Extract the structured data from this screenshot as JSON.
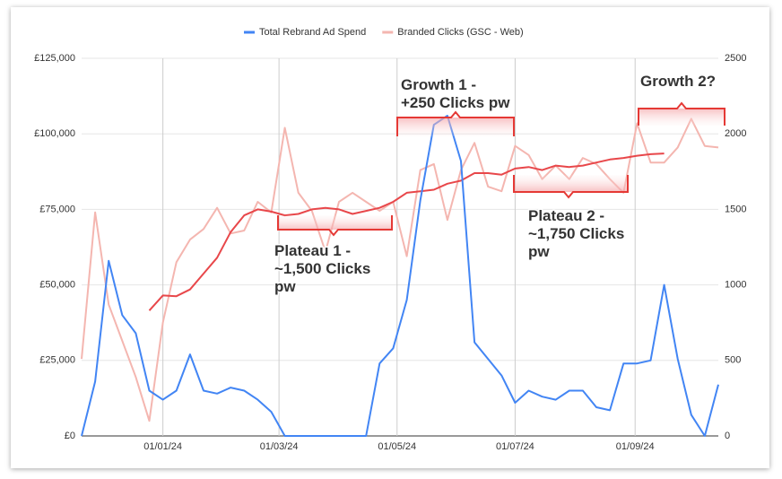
{
  "chart_data": {
    "type": "line",
    "x": [
      "20/11/23",
      "27/11/23",
      "04/12/23",
      "11/12/23",
      "18/12/23",
      "25/12/23",
      "01/01/24",
      "08/01/24",
      "15/01/24",
      "22/01/24",
      "29/01/24",
      "05/02/24",
      "12/02/24",
      "19/02/24",
      "26/02/24",
      "04/03/24",
      "11/03/24",
      "18/03/24",
      "25/03/24",
      "01/04/24",
      "08/04/24",
      "15/04/24",
      "22/04/24",
      "29/04/24",
      "06/05/24",
      "13/05/24",
      "20/05/24",
      "27/05/24",
      "03/06/24",
      "10/06/24",
      "17/06/24",
      "24/06/24",
      "01/07/24",
      "08/07/24",
      "15/07/24",
      "22/07/24",
      "29/07/24",
      "05/08/24",
      "12/08/24",
      "19/08/24",
      "26/08/24",
      "02/09/24",
      "09/09/24",
      "16/09/24",
      "23/09/24",
      "30/09/24",
      "07/10/24",
      "14/10/24"
    ],
    "xlim": [
      "20/11/23",
      "14/10/24"
    ],
    "xticks": [
      "01/01/24",
      "01/03/24",
      "01/05/24",
      "01/07/24",
      "01/09/24"
    ],
    "ylim": [
      0,
      125000
    ],
    "yticks": [
      {
        "value": 0,
        "label": "£0"
      },
      {
        "value": 25000,
        "label": "£25,000"
      },
      {
        "value": 50000,
        "label": "£50,000"
      },
      {
        "value": 75000,
        "label": "£75,000"
      },
      {
        "value": 100000,
        "label": "£100,000"
      },
      {
        "value": 125000,
        "label": "£125,000"
      }
    ],
    "y2lim": [
      0,
      2500
    ],
    "y2ticks": [
      0,
      500,
      1000,
      1500,
      2000,
      2500
    ],
    "grid": true,
    "legend": "top",
    "series": [
      {
        "name": "Total Rebrand Ad Spend",
        "color": "#4285f4",
        "values": [
          0,
          18000,
          58000,
          40000,
          34000,
          15000,
          12000,
          15000,
          27000,
          15000,
          14000,
          16000,
          15000,
          12000,
          8000,
          0,
          0,
          0,
          0,
          0,
          0,
          0,
          24000,
          29000,
          45000,
          78000,
          103000,
          106000,
          91000,
          31000,
          25500,
          20000,
          11000,
          15000,
          13000,
          12000,
          15000,
          15000,
          9500,
          8500,
          24000,
          24000,
          25000,
          50000,
          25500,
          7000,
          0,
          17000
        ]
      },
      {
        "name": "Branded Clicks (GSC - Web)",
        "color": "#f4b6b0",
        "axis": "y2",
        "values": [
          510,
          1480,
          870,
          630,
          390,
          100,
          750,
          1150,
          1300,
          1370,
          1510,
          1340,
          1360,
          1550,
          1480,
          2040,
          1610,
          1490,
          1220,
          1550,
          1610,
          1550,
          1490,
          1550,
          1190,
          1760,
          1800,
          1430,
          1760,
          1940,
          1650,
          1620,
          1920,
          1860,
          1700,
          1790,
          1700,
          1840,
          1800,
          1700,
          1610,
          2070,
          1810,
          1810,
          1910,
          2100,
          1920,
          1910
        ]
      },
      {
        "color": "#e8474a",
        "axis": "y2",
        "values": [
          null,
          null,
          null,
          null,
          null,
          830,
          930,
          925,
          970,
          1075,
          1180,
          1350,
          1460,
          1500,
          1485,
          1460,
          1470,
          1500,
          1510,
          1500,
          1470,
          1490,
          1510,
          1550,
          1610,
          1620,
          1630,
          1670,
          1690,
          1740,
          1740,
          1730,
          1770,
          1780,
          1760,
          1790,
          1780,
          1790,
          1810,
          1830,
          1840,
          1855,
          1865,
          1870,
          null,
          null,
          null,
          null
        ]
      }
    ],
    "annotations": [
      {
        "lines": [
          "Growth 1 -",
          "+250 Clicks pw"
        ],
        "color": "#29b6f6"
      },
      {
        "lines": [
          "Growth 2?"
        ],
        "color": "#29b6f6"
      },
      {
        "lines": [
          "Plateau 1 -",
          "~1,500 Clicks",
          "pw"
        ],
        "color": "#f23a6a"
      },
      {
        "lines": [
          "Plateau 2 -",
          "~1,750 Clicks",
          "pw"
        ],
        "color": "#f23a6a"
      }
    ]
  }
}
